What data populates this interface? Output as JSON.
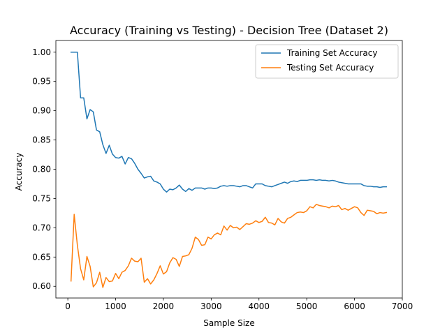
{
  "chart_data": {
    "type": "line",
    "title": "Accuracy (Training vs Testing) - Decision Tree (Dataset 2)",
    "xlabel": "Sample Size",
    "ylabel": "Accuracy",
    "xlim": [
      -250,
      7000
    ],
    "ylim": [
      0.58,
      1.02
    ],
    "x_ticks": [
      0,
      1000,
      2000,
      3000,
      4000,
      5000,
      6000,
      7000
    ],
    "x_tick_labels": [
      "0",
      "1000",
      "2000",
      "3000",
      "4000",
      "5000",
      "6000",
      "7000"
    ],
    "y_ticks": [
      0.6,
      0.65,
      0.7,
      0.75,
      0.8,
      0.85,
      0.9,
      0.95,
      1.0
    ],
    "y_tick_labels": [
      "0.60",
      "0.65",
      "0.70",
      "0.75",
      "0.80",
      "0.85",
      "0.90",
      "0.95",
      "1.00"
    ],
    "grid": false,
    "legend_position": "top-right",
    "colors": {
      "training": "#1f77b4",
      "testing": "#ff7f0e"
    },
    "series": [
      {
        "name": "Training Set Accuracy",
        "color": "#1f77b4",
        "x": [
          67,
          133,
          200,
          267,
          333,
          400,
          467,
          533,
          600,
          667,
          733,
          800,
          867,
          933,
          1000,
          1067,
          1133,
          1200,
          1267,
          1333,
          1400,
          1467,
          1533,
          1600,
          1667,
          1733,
          1800,
          1867,
          1933,
          2000,
          2067,
          2133,
          2200,
          2267,
          2333,
          2400,
          2467,
          2533,
          2600,
          2667,
          2733,
          2800,
          2867,
          2933,
          3000,
          3067,
          3133,
          3200,
          3267,
          3333,
          3400,
          3467,
          3533,
          3600,
          3667,
          3733,
          3800,
          3867,
          3933,
          4000,
          4067,
          4133,
          4200,
          4267,
          4333,
          4400,
          4467,
          4533,
          4600,
          4667,
          4733,
          4800,
          4867,
          4933,
          5000,
          5067,
          5133,
          5200,
          5267,
          5333,
          5400,
          5467,
          5533,
          5600,
          5667,
          5733,
          5800,
          5867,
          5933,
          6000,
          6067,
          6133,
          6200,
          6267,
          6333,
          6400,
          6467,
          6533,
          6600,
          6667
        ],
        "values": [
          1.0,
          1.0,
          1.0,
          0.922,
          0.922,
          0.886,
          0.902,
          0.898,
          0.867,
          0.864,
          0.842,
          0.827,
          0.841,
          0.826,
          0.82,
          0.819,
          0.822,
          0.809,
          0.82,
          0.818,
          0.81,
          0.8,
          0.793,
          0.785,
          0.787,
          0.788,
          0.78,
          0.778,
          0.775,
          0.766,
          0.761,
          0.766,
          0.765,
          0.768,
          0.773,
          0.766,
          0.762,
          0.767,
          0.764,
          0.768,
          0.768,
          0.768,
          0.766,
          0.768,
          0.768,
          0.767,
          0.768,
          0.771,
          0.772,
          0.771,
          0.772,
          0.772,
          0.771,
          0.77,
          0.772,
          0.772,
          0.77,
          0.768,
          0.775,
          0.775,
          0.775,
          0.772,
          0.771,
          0.77,
          0.772,
          0.774,
          0.776,
          0.778,
          0.776,
          0.779,
          0.78,
          0.779,
          0.781,
          0.781,
          0.781,
          0.782,
          0.782,
          0.781,
          0.782,
          0.781,
          0.781,
          0.78,
          0.781,
          0.78,
          0.778,
          0.777,
          0.776,
          0.775,
          0.775,
          0.775,
          0.775,
          0.775,
          0.772,
          0.771,
          0.771,
          0.77,
          0.77,
          0.769,
          0.77,
          0.77
        ]
      },
      {
        "name": "Testing Set Accuracy",
        "color": "#ff7f0e",
        "x": [
          67,
          133,
          200,
          267,
          333,
          400,
          467,
          533,
          600,
          667,
          733,
          800,
          867,
          933,
          1000,
          1067,
          1133,
          1200,
          1267,
          1333,
          1400,
          1467,
          1533,
          1600,
          1667,
          1733,
          1800,
          1867,
          1933,
          2000,
          2067,
          2133,
          2200,
          2267,
          2333,
          2400,
          2467,
          2533,
          2600,
          2667,
          2733,
          2800,
          2867,
          2933,
          3000,
          3067,
          3133,
          3200,
          3267,
          3333,
          3400,
          3467,
          3533,
          3600,
          3667,
          3733,
          3800,
          3867,
          3933,
          4000,
          4067,
          4133,
          4200,
          4267,
          4333,
          4400,
          4467,
          4533,
          4600,
          4667,
          4733,
          4800,
          4867,
          4933,
          5000,
          5067,
          5133,
          5200,
          5267,
          5333,
          5400,
          5467,
          5533,
          5600,
          5667,
          5733,
          5800,
          5867,
          5933,
          6000,
          6067,
          6133,
          6200,
          6267,
          6333,
          6400,
          6467,
          6533,
          6600,
          6667
        ],
        "values": [
          0.609,
          0.723,
          0.67,
          0.63,
          0.611,
          0.651,
          0.634,
          0.599,
          0.606,
          0.624,
          0.598,
          0.615,
          0.608,
          0.609,
          0.622,
          0.613,
          0.624,
          0.627,
          0.635,
          0.648,
          0.643,
          0.642,
          0.648,
          0.607,
          0.613,
          0.604,
          0.611,
          0.622,
          0.635,
          0.621,
          0.625,
          0.64,
          0.649,
          0.646,
          0.634,
          0.651,
          0.652,
          0.654,
          0.665,
          0.684,
          0.68,
          0.67,
          0.671,
          0.684,
          0.681,
          0.688,
          0.691,
          0.688,
          0.703,
          0.696,
          0.704,
          0.7,
          0.701,
          0.697,
          0.702,
          0.707,
          0.706,
          0.708,
          0.712,
          0.709,
          0.711,
          0.718,
          0.709,
          0.708,
          0.705,
          0.716,
          0.71,
          0.708,
          0.716,
          0.718,
          0.722,
          0.726,
          0.727,
          0.726,
          0.729,
          0.736,
          0.734,
          0.74,
          0.738,
          0.737,
          0.736,
          0.734,
          0.737,
          0.736,
          0.738,
          0.731,
          0.733,
          0.73,
          0.733,
          0.736,
          0.734,
          0.726,
          0.721,
          0.73,
          0.729,
          0.728,
          0.724,
          0.726,
          0.725,
          0.726
        ]
      }
    ]
  }
}
